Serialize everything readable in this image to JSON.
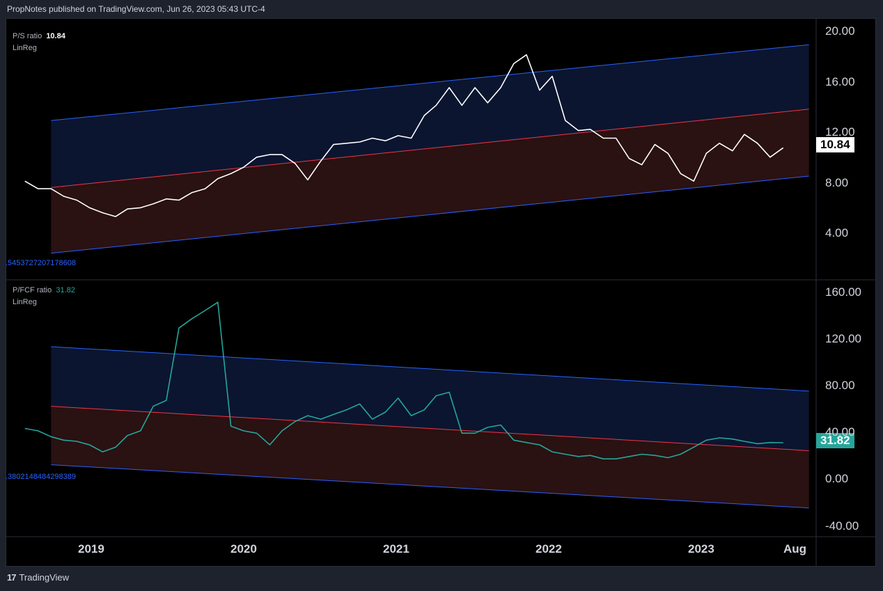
{
  "header": {
    "text": "PropNotes published on TradingView.com, Jun 26, 2023 05:43 UTC-4"
  },
  "footer": {
    "logo_mark": "17",
    "brand": "TradingView"
  },
  "colors": {
    "background": "#000000",
    "frame": "#1e222d",
    "upper_channel_fill": "#0b1530",
    "lower_channel_fill": "#2a1112",
    "channel_edge": "#2962ff",
    "midline": "#f23645",
    "ps_line": "#ffffff",
    "pfcf_line": "#26a69a"
  },
  "x_axis_labels": [
    "2019",
    "2020",
    "2021",
    "2022",
    "2023",
    "Aug"
  ],
  "chart_data": [
    {
      "type": "line",
      "title": "P/S ratio",
      "last_value": "10.84",
      "indicator": "LinReg",
      "regression_label": ".5453727207178608",
      "y_ticks": [
        "20.00",
        "16.00",
        "12.00",
        "8.00",
        "4.00"
      ],
      "ylim": [
        0.5,
        20.5
      ],
      "x": [
        "2018-07",
        "2018-08",
        "2018-09",
        "2018-10",
        "2018-11",
        "2018-12",
        "2019-01",
        "2019-02",
        "2019-03",
        "2019-04",
        "2019-05",
        "2019-06",
        "2019-07",
        "2019-08",
        "2019-09",
        "2019-10",
        "2019-11",
        "2019-12",
        "2020-01",
        "2020-02",
        "2020-03",
        "2020-04",
        "2020-05",
        "2020-06",
        "2020-07",
        "2020-08",
        "2020-09",
        "2020-10",
        "2020-11",
        "2020-12",
        "2021-01",
        "2021-02",
        "2021-03",
        "2021-04",
        "2021-05",
        "2021-06",
        "2021-07",
        "2021-08",
        "2021-09",
        "2021-10",
        "2021-11",
        "2021-12",
        "2022-01",
        "2022-02",
        "2022-03",
        "2022-04",
        "2022-05",
        "2022-06",
        "2022-07",
        "2022-08",
        "2022-09",
        "2022-10",
        "2022-11",
        "2022-12",
        "2023-01",
        "2023-02",
        "2023-03",
        "2023-04",
        "2023-05",
        "2023-06"
      ],
      "series": [
        {
          "values": [
            8.2,
            7.6,
            7.6,
            7.0,
            6.7,
            6.1,
            5.7,
            5.4,
            6.0,
            6.1,
            6.4,
            6.8,
            6.7,
            7.3,
            7.6,
            8.4,
            8.8,
            9.3,
            10.1,
            10.3,
            10.3,
            9.6,
            8.3,
            9.8,
            11.1,
            11.2,
            11.3,
            11.6,
            11.4,
            11.8,
            11.6,
            13.4,
            14.2,
            15.6,
            14.2,
            15.6,
            14.4,
            15.6,
            17.5,
            18.2,
            15.4,
            16.5,
            13.0,
            12.2,
            12.3,
            11.6,
            11.6,
            10.0,
            9.5,
            11.1,
            10.4,
            8.8,
            8.2,
            10.4,
            11.2,
            10.6,
            11.9,
            11.2,
            10.1,
            10.84
          ]
        }
      ],
      "channel": {
        "upper": [
          13.0,
          19.0
        ],
        "mid": [
          7.7,
          13.9
        ],
        "lower": [
          2.5,
          8.6
        ],
        "start": "2018-09",
        "end": "2023-08"
      }
    },
    {
      "type": "line",
      "title": "P/FCF ratio",
      "last_value": "31.82",
      "indicator": "LinReg",
      "regression_label": ".3802148484298389",
      "y_ticks": [
        "160.00",
        "120.00",
        "80.00",
        "40.00",
        "0.00",
        "-40.00"
      ],
      "ylim": [
        -48,
        170
      ],
      "x": [
        "2018-07",
        "2018-08",
        "2018-09",
        "2018-10",
        "2018-11",
        "2018-12",
        "2019-01",
        "2019-02",
        "2019-03",
        "2019-04",
        "2019-05",
        "2019-06",
        "2019-07",
        "2019-08",
        "2019-09",
        "2019-10",
        "2019-11",
        "2019-12",
        "2020-01",
        "2020-02",
        "2020-03",
        "2020-04",
        "2020-05",
        "2020-06",
        "2020-07",
        "2020-08",
        "2020-09",
        "2020-10",
        "2020-11",
        "2020-12",
        "2021-01",
        "2021-02",
        "2021-03",
        "2021-04",
        "2021-05",
        "2021-06",
        "2021-07",
        "2021-08",
        "2021-09",
        "2021-10",
        "2021-11",
        "2021-12",
        "2022-01",
        "2022-02",
        "2022-03",
        "2022-04",
        "2022-05",
        "2022-06",
        "2022-07",
        "2022-08",
        "2022-09",
        "2022-10",
        "2022-11",
        "2022-12",
        "2023-01",
        "2023-02",
        "2023-03",
        "2023-04",
        "2023-05",
        "2023-06"
      ],
      "series": [
        {
          "values": [
            44,
            42,
            37,
            34,
            33,
            30,
            24,
            28,
            38,
            42,
            63,
            68,
            130,
            138,
            145,
            152,
            46,
            42,
            40,
            30,
            42,
            50,
            55,
            52,
            56,
            60,
            65,
            52,
            58,
            70,
            55,
            60,
            72,
            75,
            40,
            40,
            45,
            47,
            34,
            32,
            30,
            24,
            22,
            20,
            21,
            18,
            18,
            20,
            22,
            21,
            19,
            22,
            28,
            34,
            36,
            35,
            33,
            31,
            32,
            31.82
          ]
        }
      ],
      "channel": {
        "upper": [
          114,
          76
        ],
        "mid": [
          63,
          25
        ],
        "lower": [
          13,
          -24
        ],
        "start": "2018-09",
        "end": "2023-08"
      }
    }
  ]
}
